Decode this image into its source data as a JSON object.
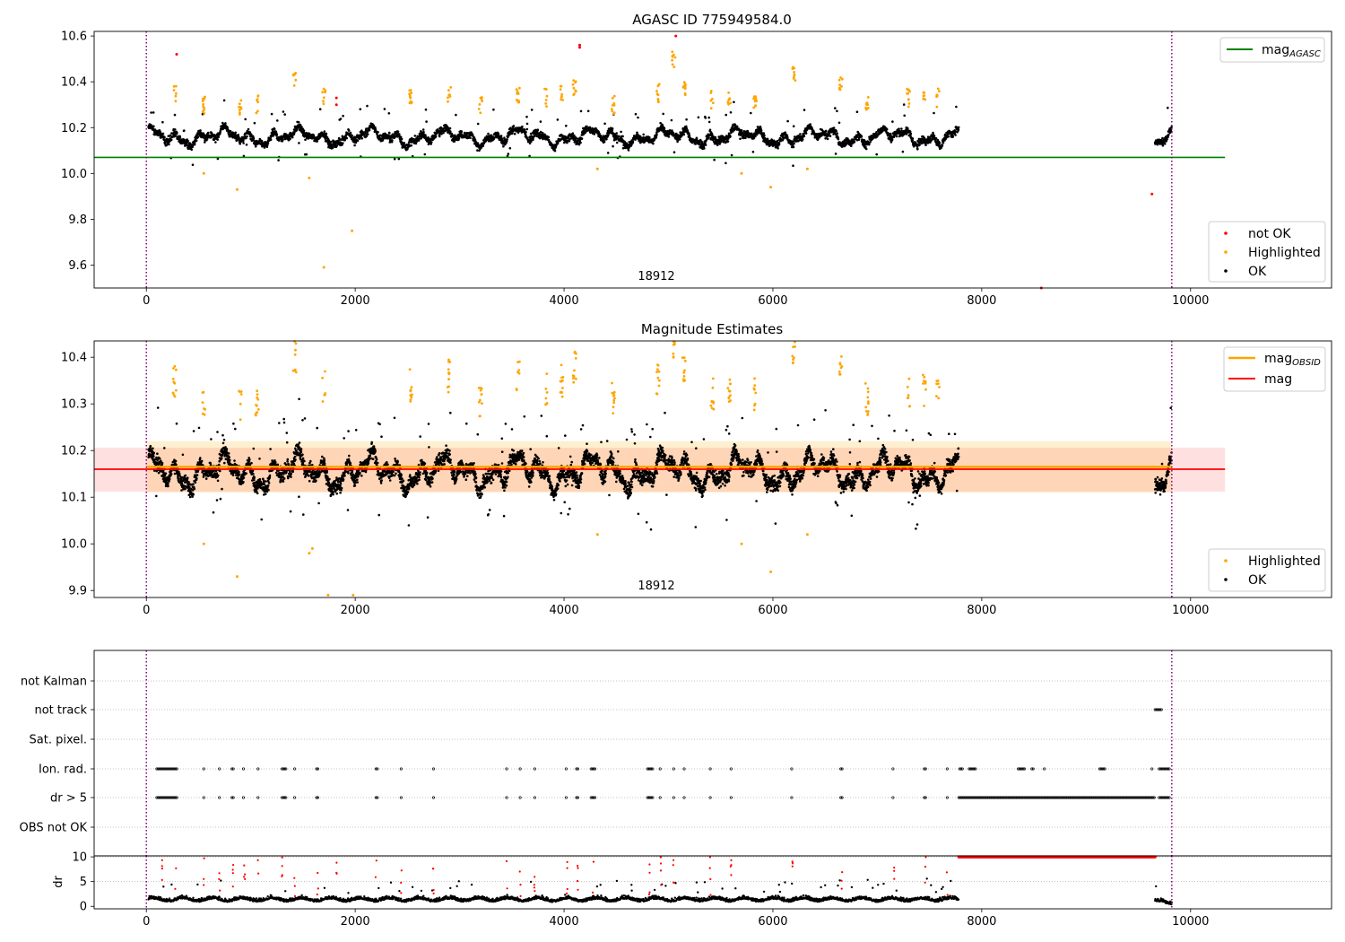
{
  "chart_data": [
    {
      "type": "scatter",
      "title": "AGASC ID 775949584.0",
      "xlim": [
        -500,
        11350
      ],
      "ylim": [
        9.5,
        10.62
      ],
      "xticks": [
        0,
        2000,
        4000,
        6000,
        8000,
        10000
      ],
      "yticks": [
        9.6,
        9.8,
        10.0,
        10.2,
        10.4,
        10.6
      ],
      "vlines": [
        0,
        9820
      ],
      "hlines": [
        {
          "name": "mag_AGASC",
          "y": 10.07,
          "x": [
            -500,
            10330
          ],
          "color": "#008000"
        }
      ],
      "annotation": {
        "text": "18912",
        "x": 4900,
        "y": 9.55
      },
      "legend_top": {
        "placement": "upper right",
        "entries": [
          {
            "label": "mag",
            "sub": "AGASC",
            "color": "#008000"
          }
        ]
      },
      "legend_bottom": {
        "placement": "lower right",
        "entries": [
          {
            "label": "not OK",
            "color": "#ff0000"
          },
          {
            "label": "Highlighted",
            "color": "#ffa500"
          },
          {
            "label": "OK",
            "color": "#000000"
          }
        ]
      },
      "series": [
        {
          "name": "OK",
          "color": "#000000",
          "segments": [
            [
              20,
              7780,
              10.16
            ],
            [
              9660,
              9820,
              10.16
            ]
          ]
        },
        {
          "name": "Highlighted",
          "color": "#ffa500",
          "clusters": [
            [
              270,
              10.35
            ],
            [
              550,
              10.3
            ],
            [
              900,
              10.28
            ],
            [
              1060,
              10.3
            ],
            [
              1420,
              10.4
            ],
            [
              1700,
              10.34
            ],
            [
              2530,
              10.33
            ],
            [
              2900,
              10.35
            ],
            [
              3200,
              10.3
            ],
            [
              3560,
              10.35
            ],
            [
              3830,
              10.33
            ],
            [
              3980,
              10.36
            ],
            [
              4100,
              10.38
            ],
            [
              4470,
              10.3
            ],
            [
              4900,
              10.35
            ],
            [
              5050,
              10.5
            ],
            [
              5150,
              10.38
            ],
            [
              5420,
              10.32
            ],
            [
              5580,
              10.33
            ],
            [
              5830,
              10.3
            ],
            [
              6200,
              10.43
            ],
            [
              6650,
              10.38
            ],
            [
              6900,
              10.3
            ],
            [
              7300,
              10.33
            ],
            [
              7450,
              10.32
            ],
            [
              7580,
              10.33
            ]
          ],
          "outliers": [
            [
              550,
              10.0
            ],
            [
              870,
              9.93
            ],
            [
              1560,
              9.98
            ],
            [
              1700,
              9.59
            ],
            [
              1970,
              9.75
            ],
            [
              4320,
              10.02
            ],
            [
              5700,
              10.0
            ],
            [
              5980,
              9.94
            ],
            [
              6330,
              10.02
            ]
          ]
        },
        {
          "name": "not OK",
          "color": "#ff0000",
          "points": [
            [
              290,
              10.52
            ],
            [
              1820,
              10.33
            ],
            [
              1820,
              10.3
            ],
            [
              4150,
              10.55
            ],
            [
              4150,
              10.56
            ],
            [
              5070,
              10.6
            ],
            [
              9630,
              9.91
            ],
            [
              8570,
              9.5
            ]
          ]
        }
      ]
    },
    {
      "type": "scatter",
      "title": "Magnitude Estimates",
      "xlim": [
        -500,
        11350
      ],
      "ylim": [
        9.885,
        10.435
      ],
      "xticks": [
        0,
        2000,
        4000,
        6000,
        8000,
        10000
      ],
      "yticks": [
        9.9,
        10.0,
        10.1,
        10.2,
        10.3,
        10.4
      ],
      "vlines": [
        0,
        9820
      ],
      "hlines": [
        {
          "name": "mag_OBSID",
          "y": 10.165,
          "x": [
            0,
            9820
          ],
          "color": "#ffa500",
          "band": [
            10.11,
            10.22
          ]
        },
        {
          "name": "mag",
          "y": 10.16,
          "x": [
            -500,
            10330
          ],
          "color": "#ff0000",
          "band": [
            10.112,
            10.206
          ]
        }
      ],
      "annotation": {
        "text": "18912",
        "x": 4900,
        "y": 9.9
      },
      "legend_top": {
        "placement": "upper right",
        "entries": [
          {
            "label": "mag",
            "sub": "OBSID",
            "color": "#ffa500"
          },
          {
            "label": "mag",
            "color": "#ff0000"
          }
        ]
      },
      "legend_bottom": {
        "placement": "lower right",
        "entries": [
          {
            "label": "Highlighted",
            "color": "#ffa500"
          },
          {
            "label": "OK",
            "color": "#000000"
          }
        ]
      },
      "series": [
        {
          "name": "OK",
          "color": "#000000",
          "segments": [
            [
              20,
              7780,
              10.155
            ],
            [
              9660,
              9820,
              10.15
            ]
          ]
        },
        {
          "name": "Highlighted",
          "color": "#ffa500",
          "clusters": [
            [
              270,
              10.35
            ],
            [
              550,
              10.31
            ],
            [
              900,
              10.3
            ],
            [
              1060,
              10.31
            ],
            [
              1420,
              10.4
            ],
            [
              1700,
              10.34
            ],
            [
              2530,
              10.34
            ],
            [
              2900,
              10.36
            ],
            [
              3200,
              10.3
            ],
            [
              3560,
              10.36
            ],
            [
              3830,
              10.33
            ],
            [
              3980,
              10.35
            ],
            [
              4100,
              10.38
            ],
            [
              4470,
              10.31
            ],
            [
              4900,
              10.35
            ],
            [
              5050,
              10.42
            ],
            [
              5150,
              10.38
            ],
            [
              5420,
              10.32
            ],
            [
              5580,
              10.33
            ],
            [
              5830,
              10.32
            ],
            [
              6200,
              10.41
            ],
            [
              6650,
              10.38
            ],
            [
              6900,
              10.31
            ],
            [
              7300,
              10.32
            ],
            [
              7450,
              10.33
            ],
            [
              7580,
              10.32
            ]
          ],
          "outliers": [
            [
              550,
              10.0
            ],
            [
              870,
              9.93
            ],
            [
              1560,
              9.98
            ],
            [
              1590,
              9.99
            ],
            [
              1740,
              9.89
            ],
            [
              1980,
              9.89
            ],
            [
              4320,
              10.02
            ],
            [
              5700,
              10.0
            ],
            [
              5980,
              9.94
            ],
            [
              6330,
              10.02
            ]
          ]
        }
      ]
    },
    {
      "type": "scatter",
      "title": "",
      "xlim": [
        -500,
        11350
      ],
      "xticks": [
        0,
        2000,
        4000,
        6000,
        8000,
        10000
      ],
      "vlines": [
        0,
        9820
      ],
      "flags": [
        "not Kalman",
        "not track",
        "Sat. pixel.",
        "Ion. rad.",
        "dr > 5",
        "OBS not OK"
      ],
      "flag_points": {
        "not track": [
          [
            9660,
            9720
          ]
        ],
        "Ion. rad.": [
          [
            100,
            300
          ],
          [
            550,
            560
          ],
          [
            700,
            710
          ],
          [
            820,
            840
          ],
          [
            930,
            940
          ],
          [
            1070,
            1080
          ],
          [
            1300,
            1340
          ],
          [
            1420,
            1430
          ],
          [
            1630,
            1650
          ],
          [
            2200,
            2220
          ],
          [
            2440,
            2450
          ],
          [
            2750,
            2760
          ],
          [
            3450,
            3460
          ],
          [
            3580,
            3590
          ],
          [
            3720,
            3730
          ],
          [
            4020,
            4030
          ],
          [
            4120,
            4140
          ],
          [
            4260,
            4300
          ],
          [
            4800,
            4850
          ],
          [
            4920,
            4930
          ],
          [
            5050,
            5060
          ],
          [
            5150,
            5160
          ],
          [
            5400,
            5410
          ],
          [
            5600,
            5610
          ],
          [
            6180,
            6190
          ],
          [
            6650,
            6670
          ],
          [
            7150,
            7160
          ],
          [
            7450,
            7470
          ],
          [
            7670,
            7680
          ],
          [
            7790,
            7820
          ],
          [
            7880,
            7950
          ],
          [
            8350,
            8420
          ],
          [
            8480,
            8500
          ],
          [
            8600,
            8610
          ],
          [
            9130,
            9180
          ],
          [
            9630,
            9640
          ],
          [
            9700,
            9800
          ]
        ],
        "dr > 5": [
          [
            100,
            300
          ],
          [
            550,
            560
          ],
          [
            700,
            710
          ],
          [
            820,
            840
          ],
          [
            930,
            940
          ],
          [
            1070,
            1080
          ],
          [
            1300,
            1340
          ],
          [
            1420,
            1430
          ],
          [
            1630,
            1650
          ],
          [
            2200,
            2220
          ],
          [
            2440,
            2450
          ],
          [
            2750,
            2760
          ],
          [
            3450,
            3460
          ],
          [
            3580,
            3590
          ],
          [
            3720,
            3730
          ],
          [
            4020,
            4030
          ],
          [
            4120,
            4140
          ],
          [
            4260,
            4300
          ],
          [
            4800,
            4850
          ],
          [
            4920,
            4930
          ],
          [
            5050,
            5060
          ],
          [
            5150,
            5160
          ],
          [
            5400,
            5410
          ],
          [
            5600,
            5610
          ],
          [
            6180,
            6190
          ],
          [
            6650,
            6670
          ],
          [
            7150,
            7160
          ],
          [
            7450,
            7470
          ],
          [
            7670,
            7680
          ],
          [
            7780,
            9660
          ],
          [
            9700,
            9800
          ]
        ]
      }
    },
    {
      "type": "scatter",
      "ylabel": "dr",
      "xlim": [
        -500,
        11350
      ],
      "ylim": [
        -0.5,
        10.2
      ],
      "xticks": [
        0,
        2000,
        4000,
        6000,
        8000,
        10000
      ],
      "yticks": [
        0,
        5,
        10
      ],
      "vlines": [
        0,
        9820
      ],
      "series": [
        {
          "name": "OK",
          "color": "#000000",
          "segments": [
            [
              20,
              7780,
              1.2
            ],
            [
              9660,
              9820,
              0.7
            ]
          ]
        },
        {
          "name": "not OK",
          "color": "#ff0000",
          "segments": [
            [
              7780,
              9660,
              10.0
            ]
          ]
        }
      ]
    }
  ]
}
